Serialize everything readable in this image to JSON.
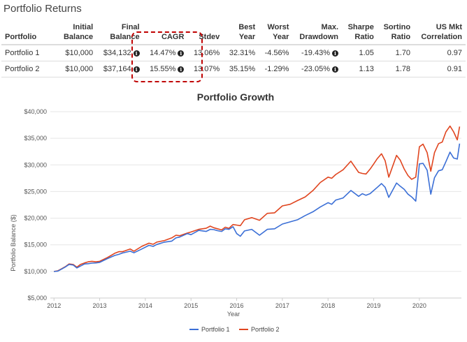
{
  "section_title": "Portfolio Returns",
  "table": {
    "headers": [
      {
        "l1": "",
        "l2": "Portfolio"
      },
      {
        "l1": "Initial",
        "l2": "Balance"
      },
      {
        "l1": "Final",
        "l2": "Balance"
      },
      {
        "l1": "",
        "l2": "CAGR"
      },
      {
        "l1": "",
        "l2": "Stdev"
      },
      {
        "l1": "Best",
        "l2": "Year"
      },
      {
        "l1": "Worst",
        "l2": "Year"
      },
      {
        "l1": "Max.",
        "l2": "Drawdown"
      },
      {
        "l1": "Sharpe",
        "l2": "Ratio"
      },
      {
        "l1": "Sortino",
        "l2": "Ratio"
      },
      {
        "l1": "US Mkt",
        "l2": "Correlation"
      }
    ],
    "rows": [
      {
        "portfolio": "Portfolio 1",
        "initial": "$10,000",
        "final": "$34,132",
        "cagr": "14.47%",
        "stdev": "13.06%",
        "best": "32.31%",
        "worst": "-4.56%",
        "maxdd": "-19.43%",
        "sharpe": "1.05",
        "sortino": "1.70",
        "corr": "0.97"
      },
      {
        "portfolio": "Portfolio 2",
        "initial": "$10,000",
        "final": "$37,164",
        "cagr": "15.55%",
        "stdev": "13.07%",
        "best": "35.15%",
        "worst": "-1.29%",
        "maxdd": "-23.05%",
        "sharpe": "1.13",
        "sortino": "1.78",
        "corr": "0.91"
      }
    ]
  },
  "icons": {
    "info": "info-circle-icon"
  },
  "colors": {
    "portfolio1": "#3b6fd6",
    "portfolio2": "#e0451f",
    "highlight": "#c00000",
    "grid": "#e6e6e6"
  },
  "chart_data": {
    "type": "line",
    "title": "Portfolio Growth",
    "xlabel": "Year",
    "ylabel": "Portfolio Balance ($)",
    "x_ticks": [
      "2012",
      "2013",
      "2014",
      "2015",
      "2016",
      "2017",
      "2018",
      "2019",
      "2020"
    ],
    "y_ticks": [
      "$5,000",
      "$10,000",
      "$15,000",
      "$20,000",
      "$25,000",
      "$30,000",
      "$35,000",
      "$40,000"
    ],
    "xlim": [
      2011.92,
      2020.92
    ],
    "ylim": [
      5000,
      40000
    ],
    "grid": "horizontal",
    "legend_position": "bottom-center",
    "series": [
      {
        "name": "Portfolio 1",
        "x": [
          2012.0,
          2012.08,
          2012.17,
          2012.25,
          2012.33,
          2012.42,
          2012.5,
          2012.58,
          2012.67,
          2012.75,
          2012.83,
          2012.92,
          2013.0,
          2013.17,
          2013.33,
          2013.42,
          2013.5,
          2013.67,
          2013.75,
          2013.92,
          2014.08,
          2014.17,
          2014.25,
          2014.42,
          2014.58,
          2014.67,
          2014.75,
          2014.92,
          2015.0,
          2015.17,
          2015.33,
          2015.42,
          2015.5,
          2015.58,
          2015.67,
          2015.75,
          2015.83,
          2015.92,
          2016.0,
          2016.08,
          2016.17,
          2016.33,
          2016.5,
          2016.67,
          2016.83,
          2017.0,
          2017.17,
          2017.33,
          2017.5,
          2017.67,
          2017.83,
          2018.0,
          2018.08,
          2018.17,
          2018.33,
          2018.5,
          2018.67,
          2018.75,
          2018.83,
          2018.92,
          2019.0,
          2019.08,
          2019.17,
          2019.25,
          2019.33,
          2019.5,
          2019.58,
          2019.67,
          2019.75,
          2019.83,
          2019.92,
          2020.0,
          2020.08,
          2020.17,
          2020.25,
          2020.33,
          2020.42,
          2020.5,
          2020.58,
          2020.67,
          2020.75,
          2020.83,
          2020.88
        ],
        "values": [
          10000,
          10050,
          10450,
          10850,
          11300,
          11200,
          10650,
          11000,
          11400,
          11450,
          11550,
          11600,
          11700,
          12400,
          13000,
          13200,
          13450,
          13800,
          13500,
          14200,
          14900,
          14700,
          15050,
          15500,
          15700,
          16300,
          16450,
          17100,
          16900,
          17700,
          17500,
          17900,
          17850,
          17650,
          17500,
          18000,
          17900,
          18400,
          17100,
          16600,
          17600,
          17900,
          16800,
          17900,
          18000,
          18900,
          19300,
          19700,
          20500,
          21200,
          22100,
          22900,
          22600,
          23400,
          23800,
          25200,
          24100,
          24600,
          24300,
          24600,
          25200,
          25800,
          26500,
          25800,
          23900,
          26600,
          26000,
          25400,
          24500,
          24000,
          23200,
          30200,
          30300,
          29000,
          24500,
          27600,
          28900,
          29100,
          30600,
          32400,
          31300,
          31100,
          34000
        ]
      },
      {
        "name": "Portfolio 2",
        "x": [
          2012.0,
          2012.08,
          2012.17,
          2012.25,
          2012.33,
          2012.42,
          2012.5,
          2012.58,
          2012.67,
          2012.75,
          2012.83,
          2012.92,
          2013.0,
          2013.17,
          2013.33,
          2013.42,
          2013.5,
          2013.67,
          2013.75,
          2013.92,
          2014.08,
          2014.17,
          2014.25,
          2014.42,
          2014.58,
          2014.67,
          2014.75,
          2014.92,
          2015.0,
          2015.17,
          2015.33,
          2015.42,
          2015.5,
          2015.58,
          2015.67,
          2015.75,
          2015.83,
          2015.92,
          2016.0,
          2016.08,
          2016.17,
          2016.33,
          2016.5,
          2016.67,
          2016.83,
          2017.0,
          2017.17,
          2017.33,
          2017.5,
          2017.67,
          2017.83,
          2018.0,
          2018.08,
          2018.17,
          2018.33,
          2018.5,
          2018.67,
          2018.75,
          2018.83,
          2018.92,
          2019.0,
          2019.08,
          2019.17,
          2019.25,
          2019.33,
          2019.5,
          2019.58,
          2019.67,
          2019.75,
          2019.83,
          2019.92,
          2020.0,
          2020.08,
          2020.17,
          2020.25,
          2020.33,
          2020.42,
          2020.5,
          2020.58,
          2020.67,
          2020.75,
          2020.83,
          2020.88
        ],
        "values": [
          10000,
          10100,
          10500,
          10900,
          11400,
          11300,
          10800,
          11300,
          11600,
          11800,
          11900,
          11800,
          11900,
          12600,
          13400,
          13700,
          13700,
          14200,
          13800,
          14700,
          15300,
          15100,
          15500,
          15800,
          16300,
          16800,
          16700,
          17200,
          17400,
          17900,
          18100,
          18500,
          18200,
          18000,
          17800,
          18300,
          18100,
          18800,
          18700,
          18600,
          19700,
          20100,
          19600,
          20900,
          21000,
          22300,
          22600,
          23300,
          24000,
          25200,
          26700,
          27700,
          27500,
          28200,
          29100,
          30700,
          28600,
          28400,
          28300,
          29200,
          30200,
          31200,
          32100,
          30800,
          27700,
          31800,
          30900,
          29200,
          28000,
          27300,
          27700,
          33400,
          33900,
          32300,
          28800,
          32300,
          34000,
          34300,
          36200,
          37300,
          36200,
          34700,
          37200
        ]
      }
    ]
  }
}
